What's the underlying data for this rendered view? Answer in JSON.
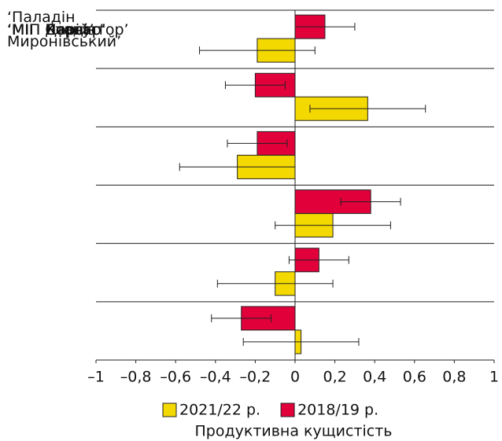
{
  "chart_data": {
    "type": "hbar",
    "categories": [
      "‘Паладін\nМиронівський’",
      "‘МІП Корсар’",
      "‘МІП Гладіатор’",
      "‘МІП Дарій’",
      "‘МІП Статус’",
      "‘МІП Ясон’"
    ],
    "series": [
      {
        "name": "2021/22 р.",
        "color": "#f4d900",
        "values": [
          -0.19,
          0.365,
          -0.29,
          0.19,
          -0.1,
          0.03
        ],
        "errors": [
          0.29,
          0.29,
          0.29,
          0.29,
          0.29,
          0.29
        ]
      },
      {
        "name": "2018/19 р.",
        "color": "#e2003b",
        "values": [
          0.15,
          -0.2,
          -0.19,
          0.38,
          0.12,
          -0.27
        ],
        "errors": [
          0.15,
          0.15,
          0.15,
          0.15,
          0.15,
          0.15
        ]
      }
    ],
    "xlabel": "Продуктивна кущистість",
    "xlim": [
      -1,
      1
    ],
    "xticks": [
      {
        "value": -1,
        "label": "–1"
      },
      {
        "value": -0.8,
        "label": "–0,8"
      },
      {
        "value": -0.6,
        "label": "–0,6"
      },
      {
        "value": -0.4,
        "label": "–0,4"
      },
      {
        "value": -0.2,
        "label": "–0,2"
      },
      0,
      {
        "value": 0.2,
        "label": "0,2"
      },
      {
        "value": 0.4,
        "label": "0,4"
      },
      {
        "value": 0.6,
        "label": "0,6"
      },
      {
        "value": 0.8,
        "label": "0,8"
      },
      1
    ]
  }
}
